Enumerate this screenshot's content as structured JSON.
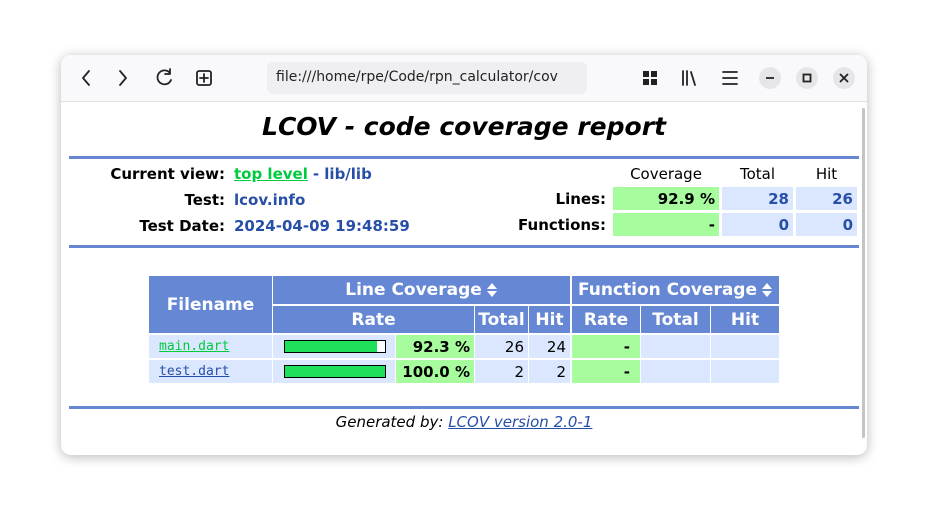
{
  "browser": {
    "url": "file:///home/rpe/Code/rpn_calculator/cov"
  },
  "header": {
    "title": "LCOV - code coverage report",
    "current_view_label": "Current view:",
    "current_view": "top level",
    "current_view_path": "- lib/lib",
    "test_label": "Test:",
    "test": "lcov.info",
    "date_label": "Test Date:",
    "date": "2024-04-09 19:48:59",
    "summary": {
      "columns": [
        "Coverage",
        "Total",
        "Hit"
      ],
      "rows": [
        {
          "label": "Lines:",
          "coverage": "92.9 %",
          "total": 28,
          "hit": 26
        },
        {
          "label": "Functions:",
          "coverage": "-",
          "total": 0,
          "hit": 0
        }
      ]
    }
  },
  "table": {
    "headers": {
      "filename": "Filename",
      "line_coverage": "Line Coverage",
      "function_coverage": "Function Coverage",
      "columns": [
        "Rate",
        "Total",
        "Hit",
        "Rate",
        "Total",
        "Hit"
      ]
    },
    "rows": [
      {
        "file": "main.dart",
        "line_rate": 92.3,
        "line_rate_label": "92.3 %",
        "line_total": 26,
        "line_hit": 24,
        "function_rate": "-"
      },
      {
        "file": "test.dart",
        "line_rate": 100,
        "line_rate_label": "100.0 %",
        "line_total": 2,
        "line_hit": 2,
        "function_rate": "-"
      }
    ]
  },
  "footer": {
    "generated_by": "Generated by:",
    "version": "LCOV version 2.0-1"
  }
}
